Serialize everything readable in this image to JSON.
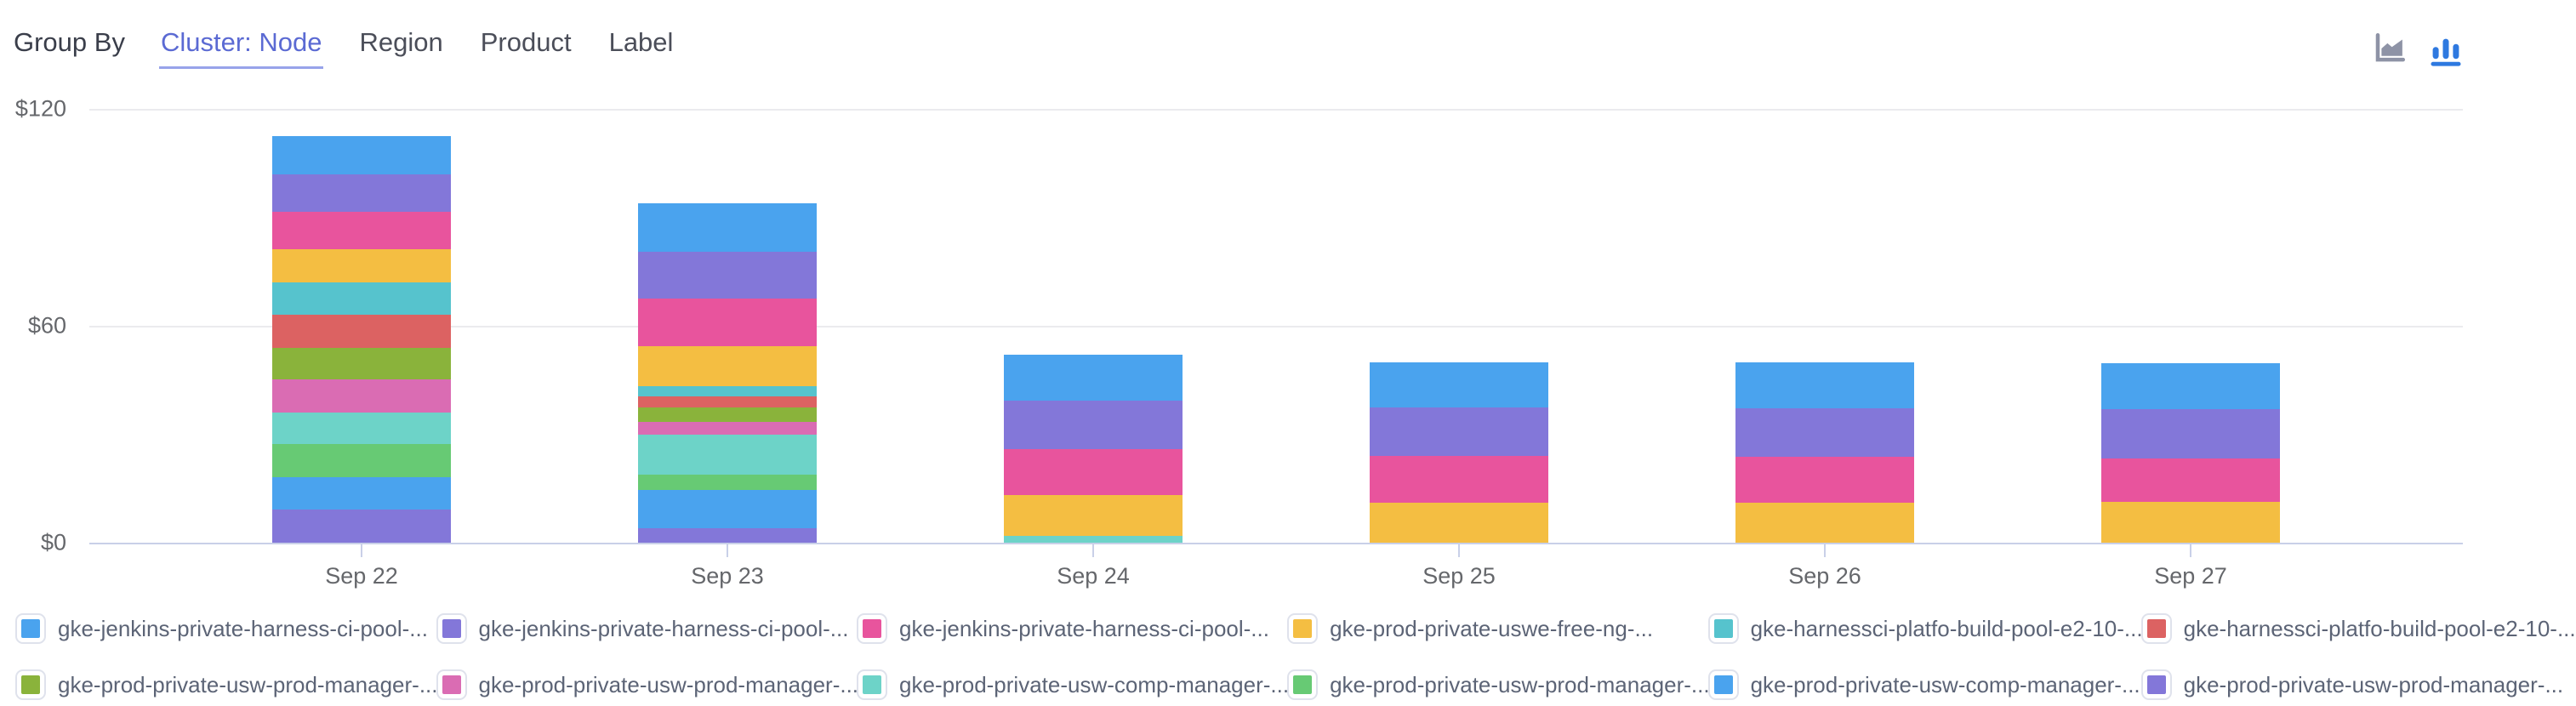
{
  "header": {
    "group_by_label": "Group By",
    "tabs": [
      {
        "label": "Cluster: Node",
        "active": true
      },
      {
        "label": "Region",
        "active": false
      },
      {
        "label": "Product",
        "active": false
      },
      {
        "label": "Label",
        "active": false
      }
    ]
  },
  "toolbar": {
    "chart_type_icons": [
      {
        "name": "area-chart-icon",
        "active": false,
        "color": "#8e93a6"
      },
      {
        "name": "bar-chart-icon",
        "active": true,
        "color": "#2e79e0"
      }
    ]
  },
  "chart_data": {
    "type": "bar",
    "stacked": true,
    "title": "",
    "xlabel": "",
    "ylabel": "",
    "ylim": [
      0,
      120
    ],
    "y_tick_labels": [
      "$0",
      "$60",
      "$120"
    ],
    "grid": true,
    "legend_position": "bottom",
    "categories": [
      "Sep 22",
      "Sep 23",
      "Sep 24",
      "Sep 25",
      "Sep 26",
      "Sep 27"
    ],
    "series": [
      {
        "name": "gke-jenkins-private-harness-ci-pool-...",
        "color": "#4aa3ee",
        "values": [
          10.5,
          13.4,
          12.8,
          12.6,
          12.6,
          12.8
        ]
      },
      {
        "name": "gke-jenkins-private-harness-ci-pool-...",
        "color": "#8377d9",
        "values": [
          10.4,
          12.9,
          13.3,
          13.3,
          13.4,
          13.6
        ]
      },
      {
        "name": "gke-jenkins-private-harness-ci-pool-...",
        "color": "#e8549d",
        "values": [
          10.5,
          13.2,
          12.7,
          13.0,
          12.7,
          12.1
        ]
      },
      {
        "name": "gke-prod-private-uswe-free-ng-...",
        "color": "#f4be42",
        "values": [
          9.1,
          11.1,
          11.3,
          11.1,
          11.1,
          11.2
        ]
      },
      {
        "name": "gke-harnessci-platfo-build-pool-e2-10-...",
        "color": "#56c3cd",
        "values": [
          8.9,
          2.8,
          0,
          0,
          0,
          0
        ]
      },
      {
        "name": "gke-harnessci-platfo-build-pool-e2-10-...",
        "color": "#dc6262",
        "values": [
          9.1,
          3.2,
          0,
          0,
          0,
          0
        ]
      },
      {
        "name": "gke-prod-private-usw-prod-manager-...",
        "color": "#8ab33b",
        "values": [
          8.9,
          3.8,
          0,
          0,
          0,
          0
        ]
      },
      {
        "name": "gke-prod-private-usw-prod-manager-...",
        "color": "#da6cb3",
        "values": [
          9.0,
          3.7,
          0,
          0,
          0,
          0
        ]
      },
      {
        "name": "gke-prod-private-usw-comp-manager-...",
        "color": "#6dd3c8",
        "values": [
          8.9,
          11.0,
          1.9,
          0,
          0,
          0
        ]
      },
      {
        "name": "gke-prod-private-usw-prod-manager-...",
        "color": "#67ca74",
        "values": [
          9.1,
          4.1,
          0,
          0,
          0,
          0
        ]
      },
      {
        "name": "gke-prod-private-usw-comp-manager-...",
        "color": "#4aa3ee",
        "values": [
          8.9,
          10.7,
          0,
          0,
          0,
          0
        ]
      },
      {
        "name": "gke-prod-private-usw-prod-manager-...",
        "color": "#8377d9",
        "values": [
          9.2,
          4.0,
          0,
          0,
          0,
          0
        ]
      }
    ]
  }
}
